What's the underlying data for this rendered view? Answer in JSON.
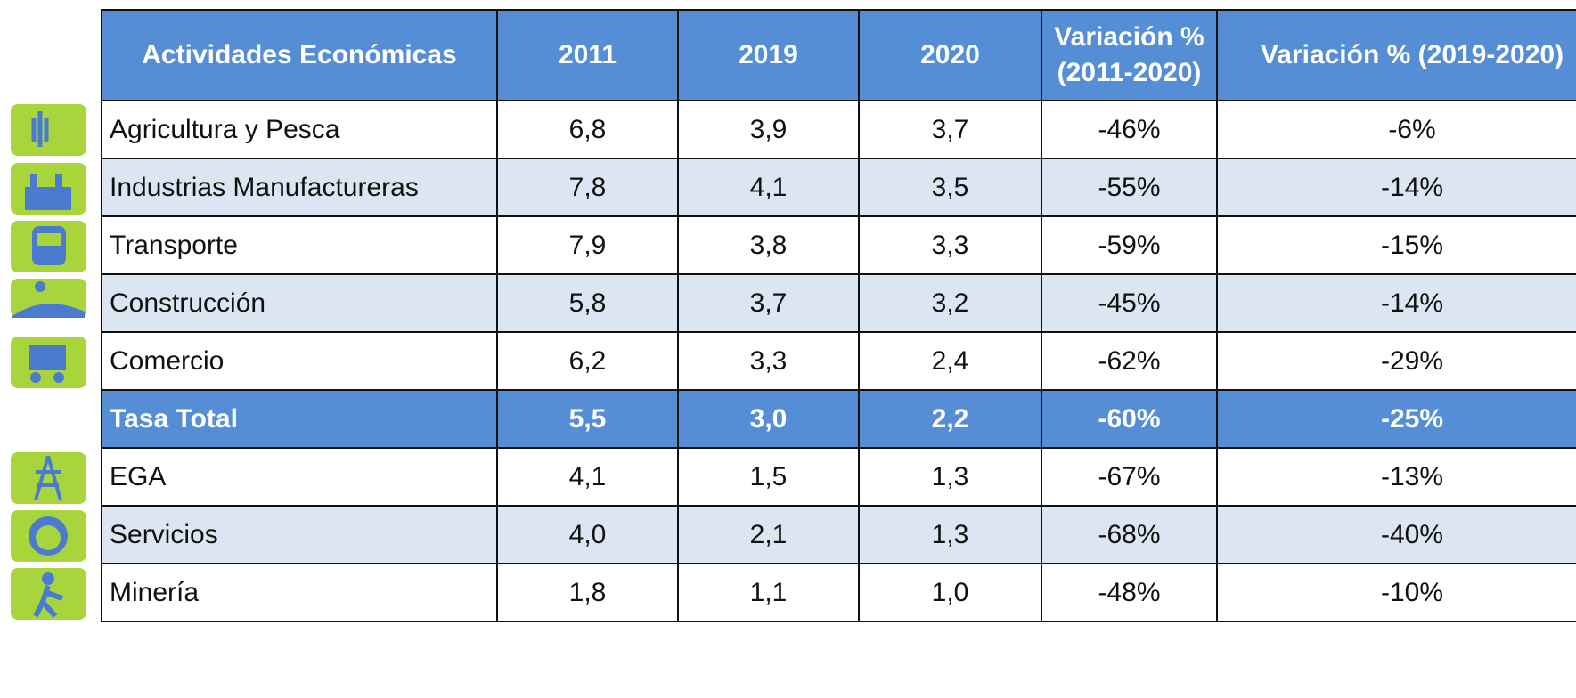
{
  "table": {
    "header": [
      "Actividades  Económicas",
      "2011",
      "2019",
      "2020",
      "Variación % (2011-2020)",
      "Variación % (2019-2020)"
    ],
    "rows": [
      [
        "Agricultura y Pesca",
        "6,8",
        "3,9",
        "3,7",
        "-46%",
        "-6%"
      ],
      [
        "Industrias Manufactureras",
        "7,8",
        "4,1",
        "3,5",
        "-55%",
        "-14%"
      ],
      [
        "Transporte",
        "7,9",
        "3,8",
        "3,3",
        "-59%",
        "-15%"
      ],
      [
        "Construcción",
        "5,8",
        "3,7",
        "3,2",
        "-45%",
        "-14%"
      ],
      [
        "Comercio",
        "6,2",
        "3,3",
        "2,4",
        "-62%",
        "-29%"
      ],
      [
        "Tasa Total",
        "5,5",
        "3,0",
        "2,2",
        "-60%",
        "-25%"
      ],
      [
        "EGA",
        "4,1",
        "1,5",
        "1,3",
        "-67%",
        "-13%"
      ],
      [
        "Servicios",
        "4,0",
        "2,1",
        "1,3",
        "-68%",
        "-40%"
      ],
      [
        "Minería",
        "1,8",
        "1,1",
        "1,0",
        "-48%",
        "-10%"
      ]
    ]
  }
}
